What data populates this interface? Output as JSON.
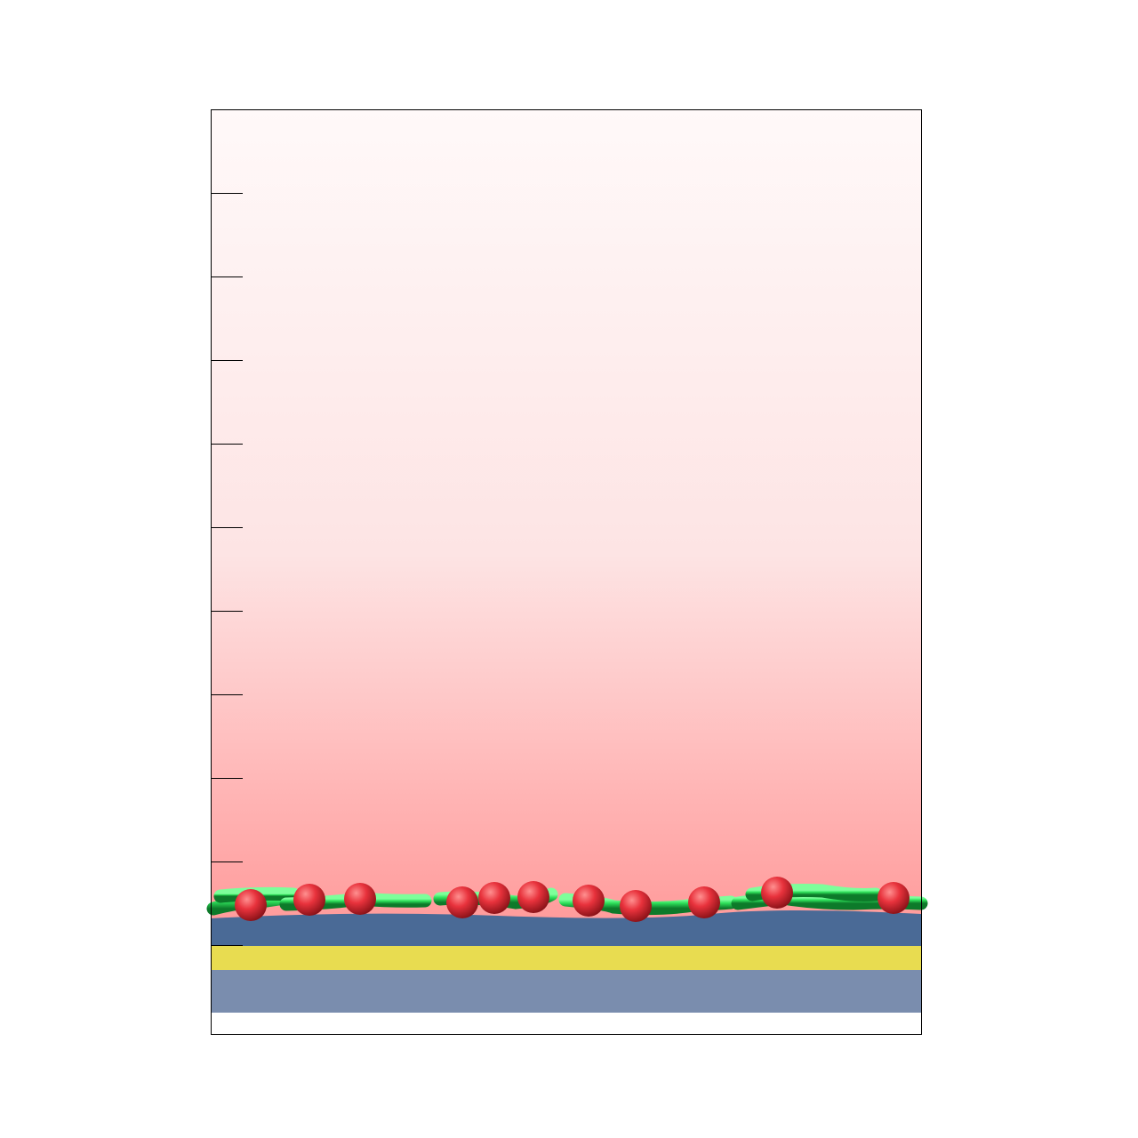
{
  "figure": {
    "colors": {
      "solution_top": "#fff9f9",
      "solution_mid": "#fde4e4",
      "solution_bottom": "#ff9c9c",
      "surface_layer": "#4a6a96",
      "middle_layer": "#e8dc50",
      "bottom_layer": "#7a8dae",
      "polymer_backbone": "#2ee05a",
      "charged_beads": "#e8323c",
      "frame": "#000000"
    },
    "icons": {
      "polymer": "polymer-chain-icon",
      "bead": "sphere-icon"
    },
    "tick_marks_left": 10
  }
}
